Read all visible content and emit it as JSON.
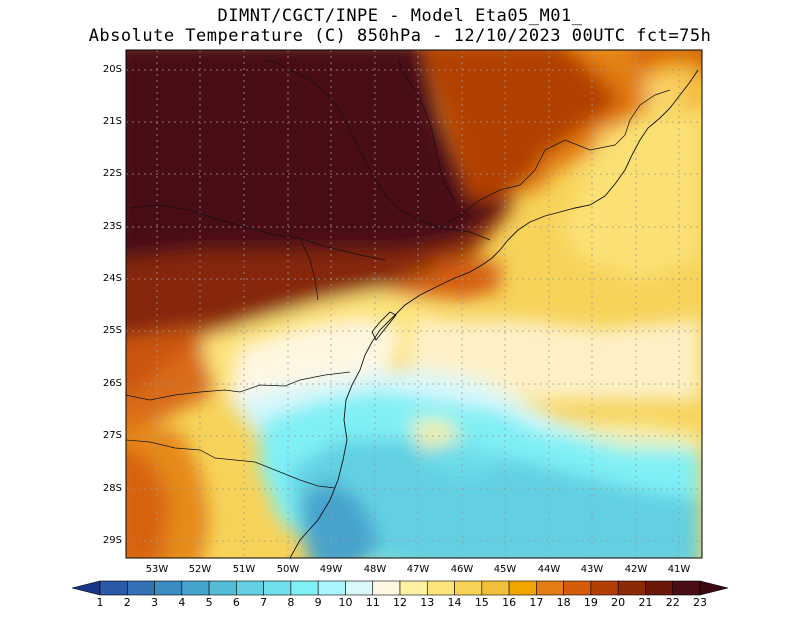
{
  "header": {
    "line1": "DIMNT/CGCT/INPE -  Model Eta05_M01_",
    "line2": "Absolute Temperature (C) 850hPa -  12/10/2023 00UTC fct=75h"
  },
  "axes": {
    "lat_labels": [
      "20S",
      "21S",
      "22S",
      "23S",
      "24S",
      "25S",
      "26S",
      "27S",
      "28S",
      "29S"
    ],
    "lon_labels": [
      "53W",
      "52W",
      "51W",
      "50W",
      "49W",
      "48W",
      "47W",
      "46W",
      "45W",
      "44W",
      "43W",
      "42W",
      "41W"
    ]
  },
  "colorbar": {
    "labels": [
      "1",
      "2",
      "3",
      "4",
      "5",
      "6",
      "7",
      "8",
      "9",
      "10",
      "11",
      "12",
      "13",
      "14",
      "15",
      "16",
      "17",
      "18",
      "19",
      "20",
      "21",
      "22",
      "23"
    ],
    "colors": [
      "#1f3f94",
      "#2a5aa8",
      "#3372b5",
      "#3b8cc2",
      "#46a3cd",
      "#55bcd8",
      "#62d0e2",
      "#6fe0ec",
      "#7ff0f6",
      "#a8f6fb",
      "#daf7fb",
      "#fff7e2",
      "#fff0a4",
      "#fde47a",
      "#f7d35a",
      "#f2bf3a",
      "#f0a500",
      "#e37c12",
      "#d35b0a",
      "#b23f06",
      "#8c2a05",
      "#6b1809",
      "#4a0f15"
    ],
    "left_arrow_color": "#1a3588",
    "right_arrow_color": "#3a0a10"
  }
}
